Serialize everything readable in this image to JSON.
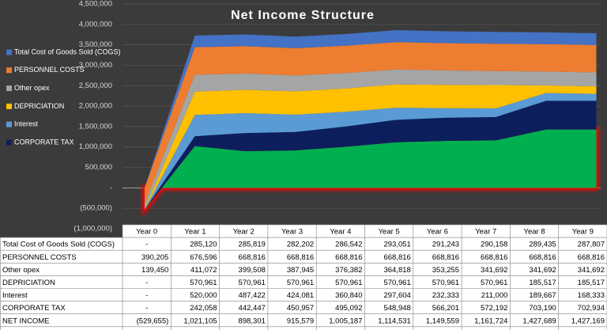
{
  "chart_data": {
    "type": "stacked_area",
    "title": "Net Income Structure",
    "categories": [
      "Year 0",
      "Year 1",
      "Year 2",
      "Year 3",
      "Year 4",
      "Year 5",
      "Year 6",
      "Year 7",
      "Year 8",
      "Year 9"
    ],
    "ylim": [
      -1000000,
      4500000
    ],
    "yticks": [
      {
        "value": -1000000,
        "label": "(1,000,000)"
      },
      {
        "value": -500000,
        "label": "(500,000)"
      },
      {
        "value": 0,
        "label": "-"
      },
      {
        "value": 500000,
        "label": "500,000"
      },
      {
        "value": 1000000,
        "label": "1,000,000"
      },
      {
        "value": 1500000,
        "label": "1,500,000"
      },
      {
        "value": 2000000,
        "label": "2,000,000"
      },
      {
        "value": 2500000,
        "label": "2,500,000"
      },
      {
        "value": 3000000,
        "label": "3,000,000"
      },
      {
        "value": 3500000,
        "label": "3,500,000"
      },
      {
        "value": 4000000,
        "label": "4,000,000"
      },
      {
        "value": 4500000,
        "label": "4,500,000"
      }
    ],
    "grid": true,
    "legend": "left",
    "series": [
      {
        "name": "Total Cost of Goods Sold (COGS)",
        "color": "#4472c4",
        "values": [
          0,
          285120,
          285819,
          282202,
          286542,
          293051,
          291243,
          290158,
          289435,
          287807
        ],
        "value_labels": [
          "-",
          "285,120",
          "285,819",
          "282,202",
          "286,542",
          "293,051",
          "291,243",
          "290,158",
          "289,435",
          "287,807"
        ]
      },
      {
        "name": "PERSONNEL COSTS",
        "color": "#ed7d31",
        "values": [
          390205,
          676596,
          668816,
          668816,
          668816,
          668816,
          668816,
          668816,
          668816,
          668816
        ],
        "value_labels": [
          "390,205",
          "676,596",
          "668,816",
          "668,816",
          "668,816",
          "668,816",
          "668,816",
          "668,816",
          "668,816",
          "668,816"
        ]
      },
      {
        "name": "Other opex",
        "color": "#a5a5a5",
        "values": [
          139450,
          411072,
          399508,
          387945,
          376382,
          364818,
          353255,
          341692,
          341692,
          341692
        ],
        "value_labels": [
          "139,450",
          "411,072",
          "399,508",
          "387,945",
          "376,382",
          "364,818",
          "353,255",
          "341,692",
          "341,692",
          "341,692"
        ]
      },
      {
        "name": "DEPRICIATION",
        "color": "#ffc000",
        "values": [
          0,
          570961,
          570961,
          570961,
          570961,
          570961,
          570961,
          570961,
          185517,
          185517
        ],
        "value_labels": [
          "-",
          "570,961",
          "570,961",
          "570,961",
          "570,961",
          "570,961",
          "570,961",
          "570,961",
          "185,517",
          "185,517"
        ]
      },
      {
        "name": "Interest",
        "color": "#5b9bd5",
        "values": [
          0,
          520000,
          487422,
          424081,
          360840,
          297604,
          232333,
          211000,
          189667,
          168333
        ],
        "value_labels": [
          "-",
          "520,000",
          "487,422",
          "424,081",
          "360,840",
          "297,604",
          "232,333",
          "211,000",
          "189,667",
          "168,333"
        ]
      },
      {
        "name": "CORPORATE TAX",
        "color": "#0c1f5c",
        "values": [
          0,
          242058,
          442447,
          450957,
          495092,
          548948,
          566201,
          572192,
          703190,
          702934
        ],
        "value_labels": [
          "-",
          "242,058",
          "442,447",
          "450,957",
          "495,092",
          "548,948",
          "566,201",
          "572,192",
          "703,190",
          "702,934"
        ]
      },
      {
        "name": "NET INCOME",
        "color": "#00b050",
        "in_legend": false,
        "highlight": "#ff0000",
        "values": [
          -529655,
          1021105,
          898301,
          915579,
          1005187,
          1114531,
          1149559,
          1161724,
          1427689,
          1427169
        ],
        "value_labels": [
          "(529,655)",
          "1,021,105",
          "898,301",
          "915,579",
          "1,005,187",
          "1,114,531",
          "1,149,559",
          "1,161,724",
          "1,427,689",
          "1,427,169"
        ]
      }
    ]
  }
}
